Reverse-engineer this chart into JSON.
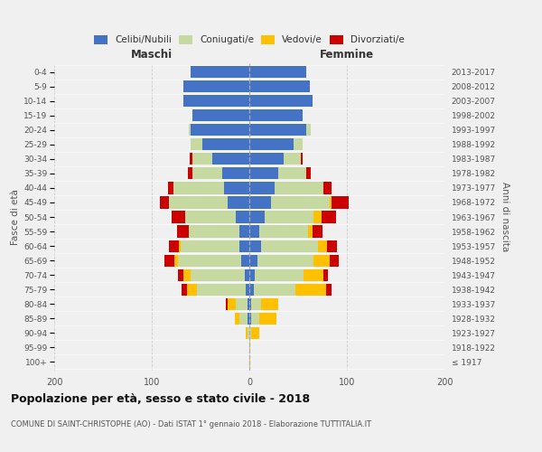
{
  "age_groups": [
    "100+",
    "95-99",
    "90-94",
    "85-89",
    "80-84",
    "75-79",
    "70-74",
    "65-69",
    "60-64",
    "55-59",
    "50-54",
    "45-49",
    "40-44",
    "35-39",
    "30-34",
    "25-29",
    "20-24",
    "15-19",
    "10-14",
    "5-9",
    "0-4"
  ],
  "birth_years": [
    "≤ 1917",
    "1918-1922",
    "1923-1927",
    "1928-1932",
    "1933-1937",
    "1938-1942",
    "1943-1947",
    "1948-1952",
    "1953-1957",
    "1958-1962",
    "1963-1967",
    "1968-1972",
    "1973-1977",
    "1978-1982",
    "1983-1987",
    "1988-1992",
    "1993-1997",
    "1998-2002",
    "2003-2007",
    "2008-2012",
    "2013-2017"
  ],
  "maschi_celibe": [
    0,
    0,
    0,
    2,
    2,
    4,
    5,
    8,
    10,
    10,
    14,
    22,
    26,
    28,
    38,
    48,
    60,
    58,
    68,
    68,
    60
  ],
  "maschi_coniugato": [
    0,
    0,
    2,
    8,
    12,
    50,
    55,
    65,
    60,
    52,
    52,
    60,
    52,
    30,
    20,
    12,
    2,
    0,
    0,
    0,
    0
  ],
  "maschi_vedovo": [
    0,
    0,
    2,
    5,
    8,
    10,
    8,
    4,
    2,
    0,
    0,
    0,
    0,
    0,
    0,
    0,
    0,
    0,
    0,
    0,
    0
  ],
  "maschi_divorziato": [
    0,
    0,
    0,
    0,
    2,
    5,
    5,
    10,
    10,
    12,
    14,
    10,
    5,
    5,
    3,
    0,
    0,
    0,
    0,
    0,
    0
  ],
  "femmine_celibe": [
    0,
    0,
    0,
    2,
    2,
    5,
    6,
    8,
    12,
    10,
    16,
    22,
    26,
    30,
    35,
    45,
    58,
    55,
    65,
    62,
    58
  ],
  "femmine_coniugato": [
    0,
    0,
    2,
    8,
    10,
    42,
    50,
    58,
    58,
    50,
    50,
    60,
    50,
    28,
    18,
    10,
    5,
    0,
    0,
    0,
    0
  ],
  "femmine_vedovo": [
    1,
    1,
    8,
    18,
    18,
    32,
    20,
    16,
    10,
    5,
    8,
    2,
    0,
    0,
    0,
    0,
    0,
    0,
    0,
    0,
    0
  ],
  "femmine_divorziato": [
    0,
    0,
    0,
    0,
    0,
    5,
    5,
    10,
    10,
    10,
    15,
    18,
    8,
    5,
    2,
    0,
    0,
    0,
    0,
    0,
    0
  ],
  "colors": {
    "celibe": "#4472c4",
    "coniugato": "#c5d9a0",
    "vedovo": "#ffc000",
    "divorziato": "#cc0000"
  },
  "xlim": 200,
  "title": "Popolazione per età, sesso e stato civile - 2018",
  "subtitle": "COMUNE DI SAINT-CHRISTOPHE (AO) - Dati ISTAT 1° gennaio 2018 - Elaborazione TUTTITALIA.IT",
  "legend_labels": [
    "Celibi/Nubili",
    "Coniugati/e",
    "Vedovi/e",
    "Divorziati/e"
  ],
  "ylabel_left": "Fasce di età",
  "ylabel_right": "Anni di nascita",
  "xlabel_left": "Maschi",
  "xlabel_right": "Femmine",
  "bg_color": "#f0f0f0"
}
